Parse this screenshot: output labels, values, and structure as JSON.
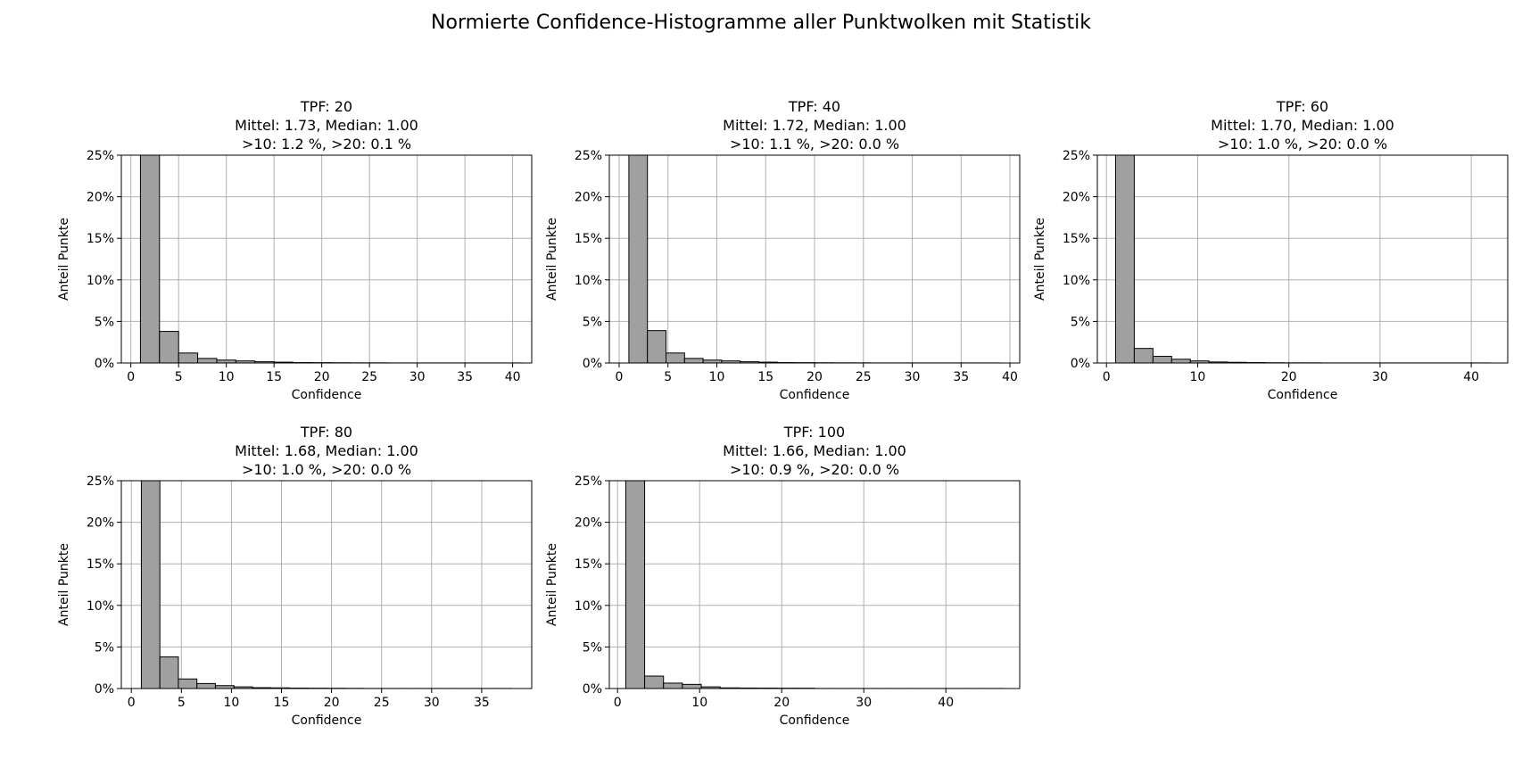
{
  "figure": {
    "suptitle": "Normierte Confidence-Histogramme aller Punktwolken mit Statistik"
  },
  "style": {
    "bar_fill": "#a0a0a0",
    "bar_edge": "#000000",
    "grid": "#b0b0b0"
  },
  "chart_data": [
    {
      "type": "bar",
      "title_lines": [
        "TPF: 20",
        "Mittel: 1.73, Median: 1.00",
        ">10: 1.2 %, >20: 0.1 %"
      ],
      "xlabel": "Confidence",
      "ylabel": "Anteil Punkte",
      "xlim": [
        -1,
        42
      ],
      "ylim": [
        0,
        25
      ],
      "xticks": [
        0,
        5,
        10,
        15,
        20,
        25,
        30,
        35,
        40
      ],
      "yticks": [
        0,
        5,
        10,
        15,
        20,
        25
      ],
      "ytick_labels": [
        "0%",
        "5%",
        "10%",
        "15%",
        "20%",
        "25%"
      ],
      "bin_edges": [
        1,
        3,
        5,
        7,
        9,
        11,
        13,
        15,
        17,
        19,
        21,
        23,
        25,
        27,
        29,
        31,
        33,
        35,
        37,
        39,
        41
      ],
      "values": [
        25,
        3.8,
        1.2,
        0.55,
        0.35,
        0.25,
        0.15,
        0.1,
        0.05,
        0.04,
        0.03,
        0.02,
        0.02,
        0.01,
        0.01,
        0.01,
        0.01,
        0.01,
        0.01,
        0.01
      ]
    },
    {
      "type": "bar",
      "title_lines": [
        "TPF: 40",
        "Mittel: 1.72, Median: 1.00",
        ">10: 1.1 %, >20: 0.0 %"
      ],
      "xlabel": "Confidence",
      "ylabel": "Anteil Punkte",
      "xlim": [
        -1,
        41
      ],
      "ylim": [
        0,
        25
      ],
      "xticks": [
        0,
        5,
        10,
        15,
        20,
        25,
        30,
        35,
        40
      ],
      "yticks": [
        0,
        5,
        10,
        15,
        20,
        25
      ],
      "ytick_labels": [
        "0%",
        "5%",
        "10%",
        "15%",
        "20%",
        "25%"
      ],
      "bin_edges": [
        1,
        2.9,
        4.8,
        6.7,
        8.6,
        10.5,
        12.4,
        14.3,
        16.2,
        18.1,
        20,
        21.9,
        23.8,
        25.7,
        27.6,
        29.5,
        31.4,
        33.3,
        35.2,
        37.1,
        39
      ],
      "values": [
        25,
        3.9,
        1.2,
        0.55,
        0.35,
        0.25,
        0.15,
        0.1,
        0.05,
        0.04,
        0.03,
        0.02,
        0.02,
        0.01,
        0.01,
        0.01,
        0.01,
        0.01,
        0.01,
        0.01
      ]
    },
    {
      "type": "bar",
      "title_lines": [
        "TPF: 60",
        "Mittel: 1.70, Median: 1.00",
        ">10: 1.0 %, >20: 0.0 %"
      ],
      "xlabel": "Confidence",
      "ylabel": "Anteil Punkte",
      "xlim": [
        -1,
        44
      ],
      "ylim": [
        0,
        25
      ],
      "xticks": [
        0,
        10,
        20,
        30,
        40
      ],
      "yticks": [
        0,
        5,
        10,
        15,
        20,
        25
      ],
      "ytick_labels": [
        "0%",
        "5%",
        "10%",
        "15%",
        "20%",
        "25%"
      ],
      "bin_edges": [
        1,
        3.05,
        5.1,
        7.15,
        9.2,
        11.25,
        13.3,
        15.35,
        17.4,
        19.45,
        21.5,
        23.55,
        25.6,
        27.65,
        29.7,
        31.75,
        33.8,
        35.85,
        37.9,
        39.95,
        42
      ],
      "values": [
        25,
        1.75,
        0.8,
        0.45,
        0.25,
        0.12,
        0.08,
        0.05,
        0.03,
        0.02,
        0.02,
        0.01,
        0.01,
        0.01,
        0.01,
        0.01,
        0.01,
        0.01,
        0.01,
        0.01
      ]
    },
    {
      "type": "bar",
      "title_lines": [
        "TPF: 80",
        "Mittel: 1.68, Median: 1.00",
        ">10: 1.0 %, >20: 0.0 %"
      ],
      "xlabel": "Confidence",
      "ylabel": "Anteil Punkte",
      "xlim": [
        -1,
        40
      ],
      "ylim": [
        0,
        25
      ],
      "xticks": [
        0,
        5,
        10,
        15,
        20,
        25,
        30,
        35
      ],
      "yticks": [
        0,
        5,
        10,
        15,
        20,
        25
      ],
      "ytick_labels": [
        "0%",
        "5%",
        "10%",
        "15%",
        "20%",
        "25%"
      ],
      "bin_edges": [
        1,
        2.85,
        4.7,
        6.55,
        8.4,
        10.25,
        12.1,
        13.95,
        15.8,
        17.65,
        19.5,
        21.35,
        23.2,
        25.05,
        26.9,
        28.75,
        30.6,
        32.45,
        34.3,
        36.15,
        38
      ],
      "values": [
        25,
        3.8,
        1.15,
        0.6,
        0.35,
        0.2,
        0.1,
        0.08,
        0.05,
        0.04,
        0.03,
        0.02,
        0.01,
        0.01,
        0.01,
        0.01,
        0.01,
        0.01,
        0.01,
        0.01
      ]
    },
    {
      "type": "bar",
      "title_lines": [
        "TPF: 100",
        "Mittel: 1.66, Median: 1.00",
        ">10: 0.9 %, >20: 0.0 %"
      ],
      "xlabel": "Confidence",
      "ylabel": "Anteil Punkte",
      "xlim": [
        -1,
        49
      ],
      "ylim": [
        0,
        25
      ],
      "xticks": [
        0,
        10,
        20,
        30,
        40
      ],
      "yticks": [
        0,
        5,
        10,
        15,
        20,
        25
      ],
      "ytick_labels": [
        "0%",
        "5%",
        "10%",
        "15%",
        "20%",
        "25%"
      ],
      "bin_edges": [
        1,
        3.3,
        5.6,
        7.9,
        10.2,
        12.5,
        14.8,
        17.1,
        19.4,
        21.7,
        24,
        26.3,
        28.6,
        30.9,
        33.2,
        35.5,
        37.8,
        40.1,
        42.4,
        44.7,
        47
      ],
      "values": [
        25,
        1.5,
        0.65,
        0.5,
        0.2,
        0.08,
        0.06,
        0.05,
        0.04,
        0.04,
        0.01,
        0.01,
        0.01,
        0.01,
        0.01,
        0.01,
        0.01,
        0.01,
        0.01,
        0.01
      ]
    }
  ]
}
